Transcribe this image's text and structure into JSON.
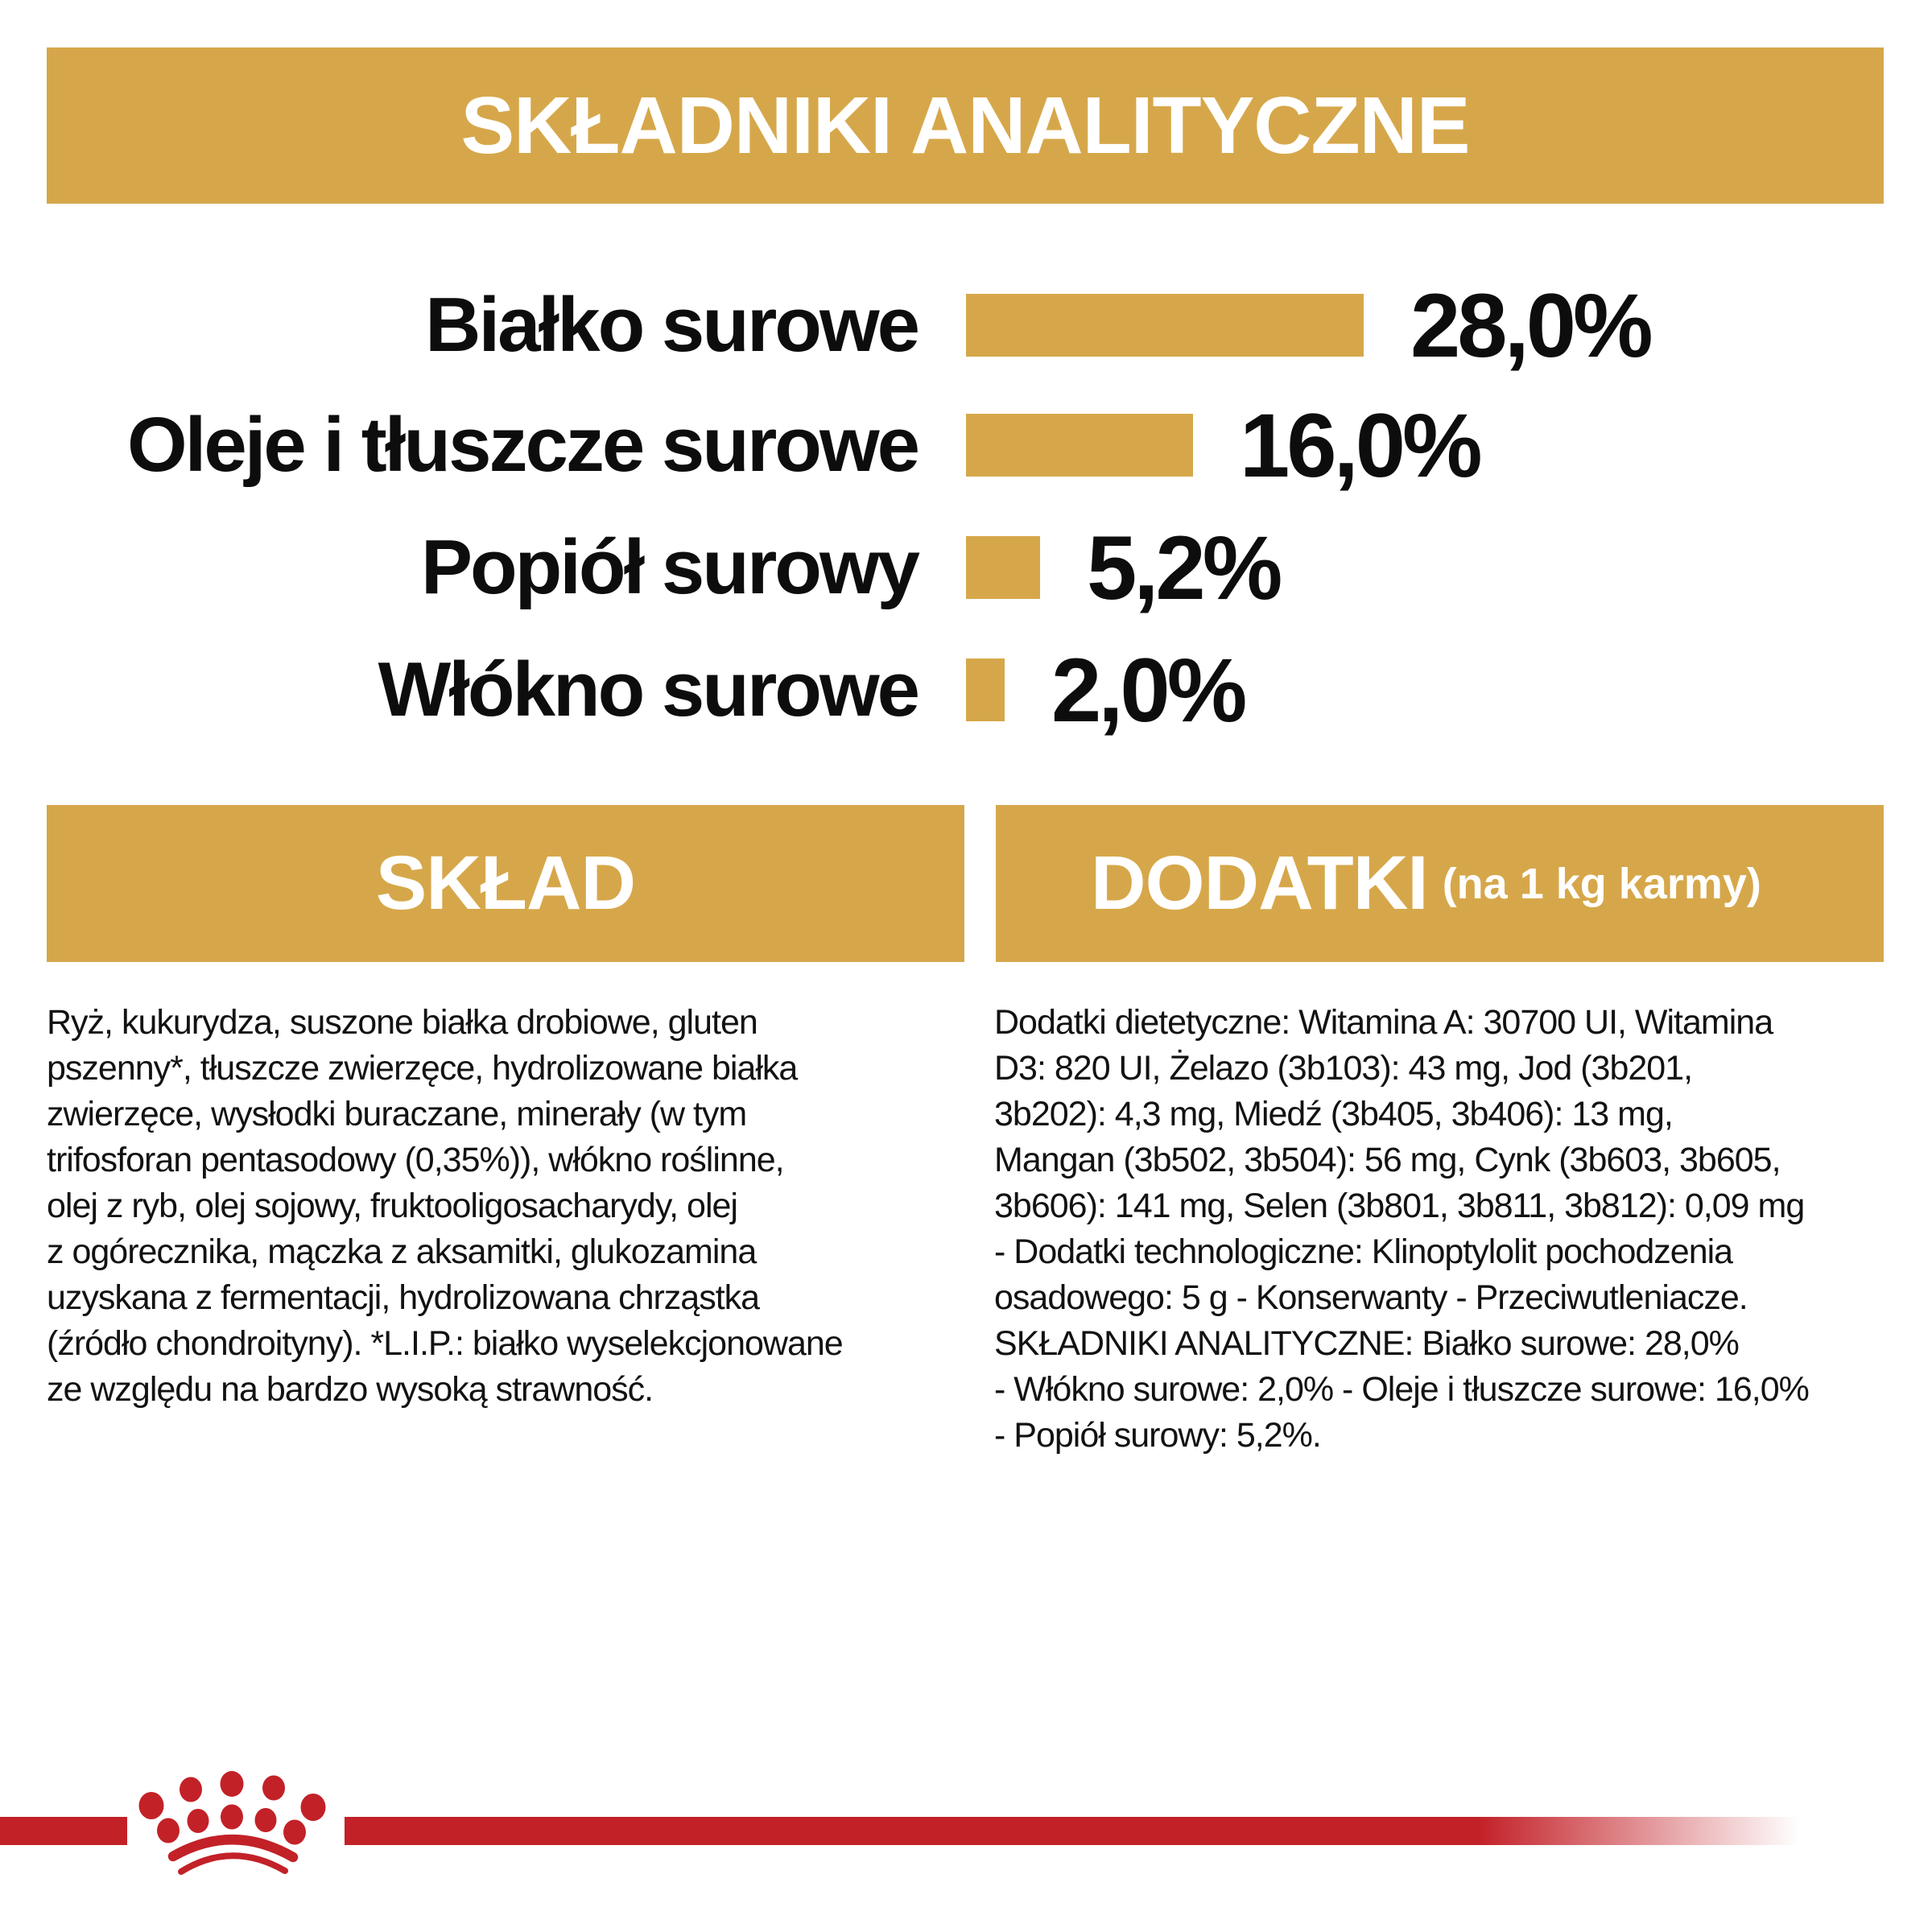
{
  "header": {
    "title": "SKŁADNIKI ANALITYCZNE"
  },
  "chart_data": {
    "type": "bar",
    "orientation": "horizontal",
    "categories": [
      "Białko surowe",
      "Oleje i tłuszcze surowe",
      "Popiół surowy",
      "Włókno surowe"
    ],
    "values": [
      28.0,
      16.0,
      5.2,
      2.0
    ],
    "value_labels": [
      "28,0%",
      "16,0%",
      "5,2%",
      "2,0%"
    ],
    "title": "SKŁADNIKI ANALITYCZNE",
    "xlabel": "",
    "ylabel": "",
    "xlim": [
      0,
      30
    ],
    "grid": false,
    "bar_color": "#D6A74A",
    "legend": "none"
  },
  "sections": {
    "sklad": {
      "title": "SKŁAD",
      "body": "Ryż, kukurydza, suszone białka drobiowe, gluten\npszenny*, tłuszcze zwierzęce, hydrolizowane białka\nzwierzęce, wysłodki buraczane, minerały (w tym\ntrifosforan pentasodowy (0,35%)), włókno roślinne,\nolej z ryb, olej sojowy, fruktooligosacharydy, olej\nz ogórecznika, mączka z aksamitki, glukozamina\nuzyskana z fermentacji, hydrolizowana chrząstka\n(źródło chondroityny). *L.I.P.: białko wyselekcjonowane\nze względu na bardzo wysoką strawność."
    },
    "dodatki": {
      "title": "DODATKI",
      "subtitle": "(na 1 kg karmy)",
      "body": "Dodatki dietetyczne: Witamina A: 30700 UI, Witamina\nD3: 820 UI, Żelazo (3b103): 43 mg, Jod (3b201,\n3b202): 4,3 mg, Miedź (3b405, 3b406): 13 mg,\nMangan (3b502, 3b504): 56 mg, Cynk (3b603, 3b605,\n3b606): 141 mg, Selen (3b801, 3b811, 3b812): 0,09 mg\n- Dodatki technologiczne: Klinoptylolit pochodzenia\nosadowego: 5 g - Konserwanty - Przeciwutleniacze.\nSKŁADNIKI ANALITYCZNE: Białko surowe: 28,0%\n- Włókno surowe: 2,0% - Oleje i tłuszcze surowe: 16,0%\n- Popiół surowy: 5,2%."
    }
  },
  "footer": {
    "logo": "royal-canin-crown-paw-logo"
  },
  "colors": {
    "gold": "#D6A74A",
    "red": "#C32128",
    "text": "#0d0d0d",
    "background": "#ffffff"
  }
}
